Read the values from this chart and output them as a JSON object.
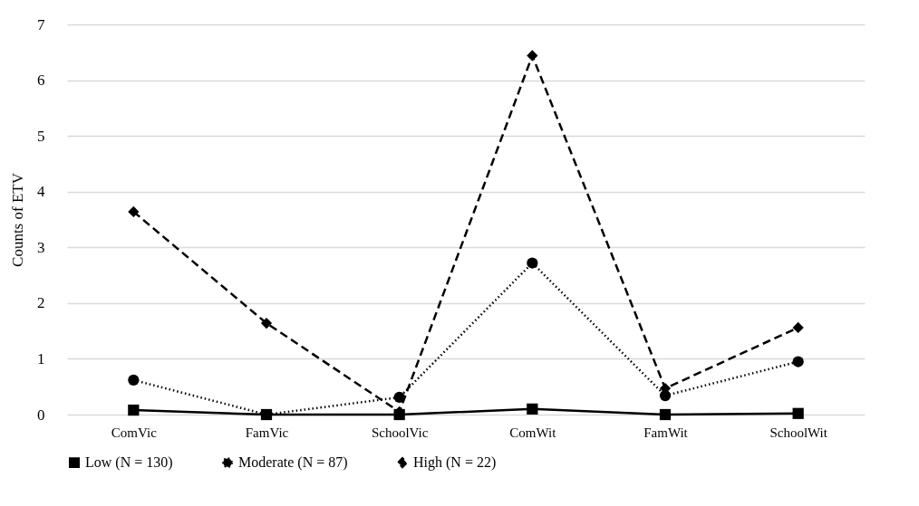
{
  "chart_data": {
    "type": "line",
    "ylabel": "Counts of ETV",
    "categories": [
      "ComVic",
      "FamVic",
      "SchoolVic",
      "ComWit",
      "FamWit",
      "SchoolWit"
    ],
    "series": [
      {
        "name": "Low (N = 130)",
        "color": "#000000",
        "marker": "square",
        "line_style": "solid",
        "values": [
          0.08,
          0.0,
          0.0,
          0.1,
          0.0,
          0.02
        ]
      },
      {
        "name": "Moderate (N = 87)",
        "color": "#000000",
        "marker": "circle",
        "line_style": "dotted",
        "values": [
          0.62,
          0.0,
          0.31,
          2.72,
          0.34,
          0.95
        ]
      },
      {
        "name": "High (N = 22)",
        "color": "#000000",
        "marker": "diamond",
        "line_style": "dashed",
        "values": [
          3.64,
          1.64,
          0.05,
          6.44,
          0.47,
          1.56
        ]
      }
    ],
    "ylim": [
      0,
      7
    ],
    "yticks": [
      0,
      1,
      2,
      3,
      4,
      5,
      6,
      7
    ],
    "grid": "y",
    "legend": "bottom"
  }
}
